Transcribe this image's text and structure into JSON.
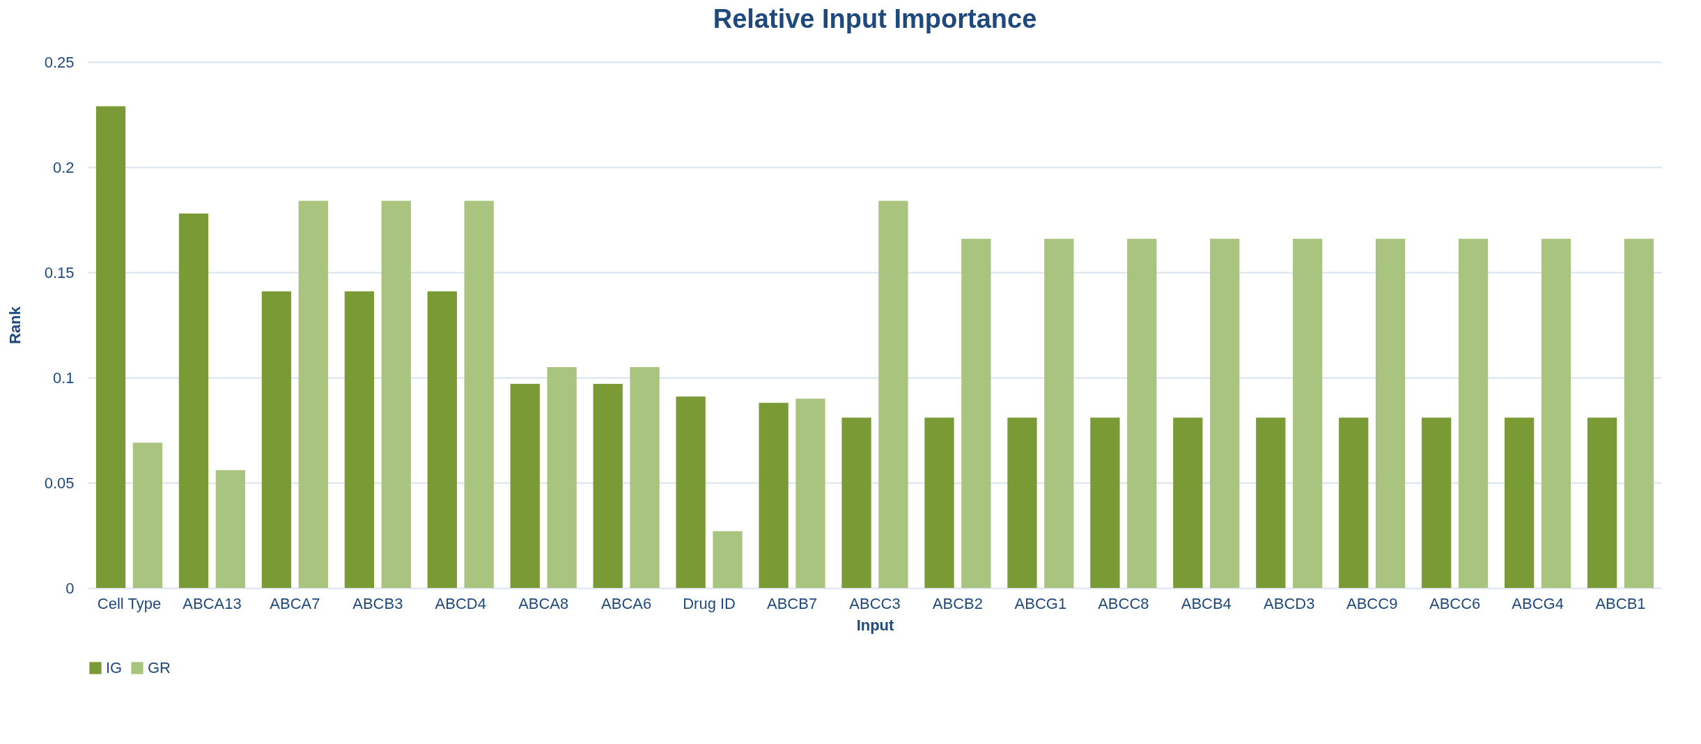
{
  "chart_data": {
    "type": "bar",
    "title": "Relative Input Importance",
    "xlabel": "Input",
    "ylabel": "Rank",
    "categories": [
      "Cell Type",
      "ABCA13",
      "ABCA7",
      "ABCB3",
      "ABCD4",
      "ABCA8",
      "ABCA6",
      "Drug ID",
      "ABCB7",
      "ABCC3",
      "ABCB2",
      "ABCG1",
      "ABCC8",
      "ABCB4",
      "ABCD3",
      "ABCC9",
      "ABCC6",
      "ABCG4",
      "ABCB1"
    ],
    "series": [
      {
        "name": "IG",
        "color": "#7a9a35",
        "values": [
          0.229,
          0.178,
          0.141,
          0.141,
          0.141,
          0.097,
          0.097,
          0.091,
          0.088,
          0.081,
          0.081,
          0.081,
          0.081,
          0.081,
          0.081,
          0.081,
          0.081,
          0.081,
          0.081
        ]
      },
      {
        "name": "GR",
        "color": "#a9c47e",
        "values": [
          0.069,
          0.056,
          0.184,
          0.184,
          0.184,
          0.105,
          0.105,
          0.027,
          0.09,
          0.184,
          0.166,
          0.166,
          0.166,
          0.166,
          0.166,
          0.166,
          0.166,
          0.166,
          0.166
        ]
      }
    ],
    "ylim": [
      0,
      0.25
    ],
    "yticks": [
      0,
      0.05,
      0.1,
      0.15,
      0.2,
      0.25
    ],
    "grid": "y",
    "legend": "bottom"
  }
}
